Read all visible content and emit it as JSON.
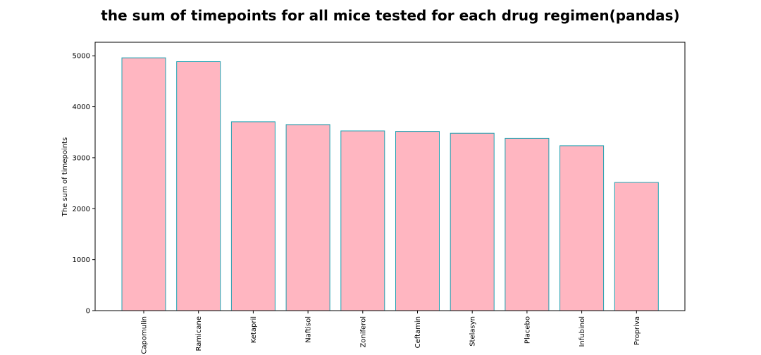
{
  "chart_data": {
    "type": "bar",
    "title": "the sum of timepoints for all mice tested for each drug regimen(pandas)",
    "xlabel": "",
    "ylabel": "The sum of timepoints",
    "categories": [
      "Capomulin",
      "Ramicane",
      "Ketapril",
      "Naftisol",
      "Zoniferol",
      "Ceftamin",
      "Stelasyn",
      "Placebo",
      "Infubinol",
      "Propriva"
    ],
    "values": [
      4960,
      4885,
      3705,
      3650,
      3525,
      3515,
      3480,
      3380,
      3235,
      2515
    ],
    "ylim": [
      0,
      5265
    ],
    "yticks": [
      0,
      1000,
      2000,
      3000,
      4000,
      5000
    ],
    "bar_fill": "#ffb6c1",
    "bar_edge": "#20a0b0",
    "grid": false,
    "legend": "none"
  }
}
